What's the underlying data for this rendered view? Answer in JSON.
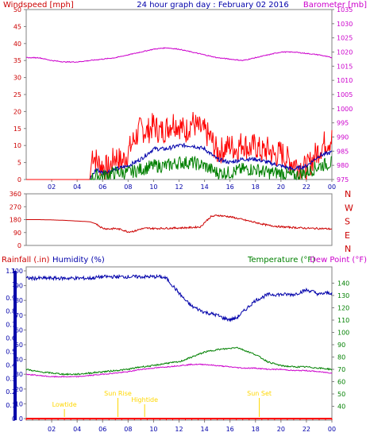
{
  "title": "24 hour graph day : February 02 2016",
  "colors": {
    "frame": "#808080",
    "grid": "#c0c0c0",
    "wind_gust": "#ff0000",
    "wind_avg": "#0000aa",
    "wind_speed": "#008000",
    "barometer": "#cc00cc",
    "direction": "#cc0000",
    "rain": "#ff0000",
    "humidity": "#0000aa",
    "temperature": "#008000",
    "dewpoint": "#cc00cc",
    "events": "#ffd700",
    "left_axis_text": "#cc0000",
    "blue_axis_text": "#0000aa",
    "green_axis_text": "#008000",
    "magenta_axis_text": "#cc00cc"
  },
  "chart_data": [
    {
      "type": "line",
      "title": "24 hour graph day : February 02 2016",
      "ylabel": "Windspeed [mph]",
      "ylabel_right": "Barometer [mb]",
      "x_ticks": [
        "02",
        "04",
        "06",
        "08",
        "10",
        "12",
        "14",
        "16",
        "18",
        "20",
        "22",
        "00"
      ],
      "ylim": [
        0,
        50
      ],
      "y_ticks": [
        0,
        5,
        10,
        15,
        20,
        25,
        30,
        35,
        40,
        45,
        50
      ],
      "ylim_right": [
        975,
        1035
      ],
      "y_ticks_right": [
        975,
        980,
        985,
        990,
        995,
        1000,
        1005,
        1010,
        1015,
        1020,
        1025,
        1030,
        1035
      ],
      "grid": false,
      "series": [
        {
          "name": "",
          "axis": "left",
          "style": "gust",
          "x": [
            0,
            5,
            5.2,
            5.6,
            6,
            6.5,
            7,
            7.5,
            8,
            8.5,
            9,
            9.5,
            10,
            10.5,
            11,
            11.5,
            12,
            12.5,
            13,
            13.5,
            14,
            14.5,
            15,
            15.5,
            16,
            16.5,
            17,
            17.5,
            18,
            18.5,
            19,
            19.5,
            20,
            20.5,
            21,
            21.5,
            22,
            22.5,
            23,
            23.5,
            24
          ],
          "y": [
            0,
            0,
            8,
            5,
            4,
            3,
            7,
            5,
            8,
            12,
            15,
            14,
            16,
            14,
            15,
            17,
            16,
            14,
            17,
            15,
            14,
            12,
            8,
            9,
            10,
            9,
            11,
            9,
            10,
            8,
            9,
            7,
            8,
            6,
            5,
            4,
            3,
            6,
            9,
            11,
            12
          ]
        },
        {
          "name": "",
          "axis": "left",
          "style": "avg",
          "x": [
            5,
            5.5,
            6,
            7,
            8,
            9,
            10,
            11,
            12,
            13,
            14,
            15,
            16,
            17,
            18,
            19,
            20,
            21,
            22,
            23,
            24
          ],
          "y": [
            0,
            3,
            2,
            3,
            4,
            6,
            9,
            9,
            10,
            10,
            9,
            6,
            5,
            6,
            6,
            5,
            4,
            3,
            4,
            7,
            8
          ]
        },
        {
          "name": "",
          "axis": "left",
          "style": "speed",
          "x": [
            5,
            5.5,
            6,
            7,
            8,
            9,
            10,
            11,
            12,
            13,
            14,
            15,
            16,
            17,
            18,
            19,
            20,
            21,
            22,
            23,
            24
          ],
          "y": [
            0,
            1,
            1,
            2,
            2,
            3,
            4,
            4,
            5,
            5,
            4,
            2,
            2,
            3,
            3,
            2,
            2,
            1,
            2,
            4,
            5
          ]
        },
        {
          "name": "",
          "axis": "right",
          "style": "baro",
          "x": [
            0,
            1,
            2,
            3,
            4,
            5,
            6,
            7,
            8,
            9,
            10,
            11,
            12,
            13,
            14,
            15,
            16,
            17,
            18,
            19,
            20,
            21,
            22,
            23,
            24
          ],
          "y": [
            1018,
            1018,
            1017,
            1016.5,
            1016.5,
            1017,
            1017.5,
            1018,
            1019,
            1020,
            1021,
            1021.5,
            1021,
            1020,
            1019,
            1018,
            1017.5,
            1017,
            1018,
            1019,
            1020,
            1020,
            1019.5,
            1019,
            1018
          ]
        }
      ]
    },
    {
      "type": "line",
      "ylim": [
        0,
        360
      ],
      "y_ticks": [
        0,
        90,
        180,
        270,
        360
      ],
      "direction_labels": [
        "N",
        "W",
        "S",
        "E",
        "N"
      ],
      "x_ticks": [
        "02",
        "04",
        "06",
        "08",
        "10",
        "12",
        "14",
        "16",
        "18",
        "20",
        "22",
        "00"
      ],
      "series": [
        {
          "name": "",
          "x": [
            0,
            1,
            2,
            3,
            4,
            5,
            5.5,
            6,
            6.5,
            7,
            7.5,
            8,
            8.5,
            9,
            9.5,
            10,
            11,
            12,
            13,
            13.7,
            14,
            14.5,
            15,
            15.5,
            16,
            16.5,
            17,
            17.5,
            18,
            19,
            20,
            21,
            22,
            23,
            24
          ],
          "y": [
            180,
            180,
            178,
            175,
            170,
            165,
            150,
            120,
            115,
            118,
            110,
            95,
            100,
            115,
            120,
            118,
            120,
            122,
            125,
            130,
            160,
            200,
            210,
            205,
            200,
            190,
            180,
            170,
            160,
            140,
            130,
            125,
            120,
            118,
            115
          ]
        }
      ]
    },
    {
      "type": "line",
      "ylabel": "Rainfall (.in)",
      "ylabel2": "Humidity (%)",
      "ylabel_right": "Temperature (°F)",
      "ylabel_right2": "Dew Point (°F)",
      "x_ticks": [
        "02",
        "04",
        "06",
        "08",
        "10",
        "12",
        "14",
        "16",
        "18",
        "20",
        "22",
        "00"
      ],
      "ylim_rain": [
        0,
        1.1
      ],
      "y_ticks_rain": [
        "0",
        "0.1",
        "0.2",
        "0.3",
        "0.4",
        "0.5",
        "0.6",
        "0.7",
        "0.8",
        "0.9",
        "1",
        "1.1"
      ],
      "ylim_hum": [
        0,
        100
      ],
      "y_ticks_hum": [
        0,
        10,
        20,
        30,
        40,
        50,
        60,
        70,
        80,
        90,
        100
      ],
      "ylim_temp": [
        30,
        150
      ],
      "y_ticks_temp": [
        40,
        50,
        60,
        70,
        80,
        90,
        100,
        110,
        120,
        130,
        140
      ],
      "events": [
        {
          "label": "Lowtide",
          "x": 3
        },
        {
          "label": "Sun Rise",
          "x": 7.2
        },
        {
          "label": "Hightide",
          "x": 9.3
        },
        {
          "label": "Sun Set",
          "x": 18.3
        }
      ],
      "series": [
        {
          "name": "",
          "axis": "hum",
          "x": [
            0,
            1,
            2,
            3,
            4,
            5,
            6,
            7,
            8,
            9,
            10,
            10.5,
            11,
            12,
            12.5,
            13,
            13.5,
            14,
            14.5,
            15,
            15.5,
            16,
            16.5,
            17,
            17.5,
            18,
            19,
            20,
            21,
            22,
            22.5,
            23,
            23.5,
            24
          ],
          "y": [
            95,
            95,
            95,
            95,
            95,
            95,
            96,
            96,
            96,
            96,
            96,
            96,
            95,
            85,
            80,
            76,
            74,
            72,
            71,
            70,
            68,
            67,
            68,
            72,
            76,
            80,
            84,
            84,
            84,
            87,
            86,
            84,
            85,
            85
          ]
        },
        {
          "name": "",
          "axis": "rain",
          "x": [
            0,
            24
          ],
          "y": [
            0,
            0
          ]
        },
        {
          "name": "",
          "axis": "temp",
          "x": [
            0,
            1,
            2,
            3,
            4,
            5,
            6,
            7,
            8,
            9,
            10,
            11,
            12,
            13,
            14,
            15,
            16,
            16.5,
            17,
            18,
            19,
            20,
            21,
            22,
            23,
            24
          ],
          "y": [
            70,
            68,
            67,
            66,
            66,
            67,
            68,
            69,
            70,
            72,
            73,
            75,
            76,
            80,
            84,
            86,
            87,
            88,
            86,
            82,
            76,
            73,
            72,
            72,
            71,
            70
          ]
        },
        {
          "name": "",
          "axis": "temp",
          "x": [
            0,
            1,
            2,
            3,
            4,
            5,
            6,
            7,
            8,
            9,
            10,
            11,
            12,
            13,
            14,
            15,
            16,
            17,
            18,
            19,
            20,
            21,
            22,
            23,
            24
          ],
          "y": [
            66,
            65,
            64,
            64,
            64,
            65,
            66,
            67,
            68,
            70,
            71,
            72,
            73,
            74,
            74,
            73,
            72,
            71,
            71,
            70,
            70,
            69,
            69,
            68,
            67
          ]
        }
      ]
    }
  ]
}
